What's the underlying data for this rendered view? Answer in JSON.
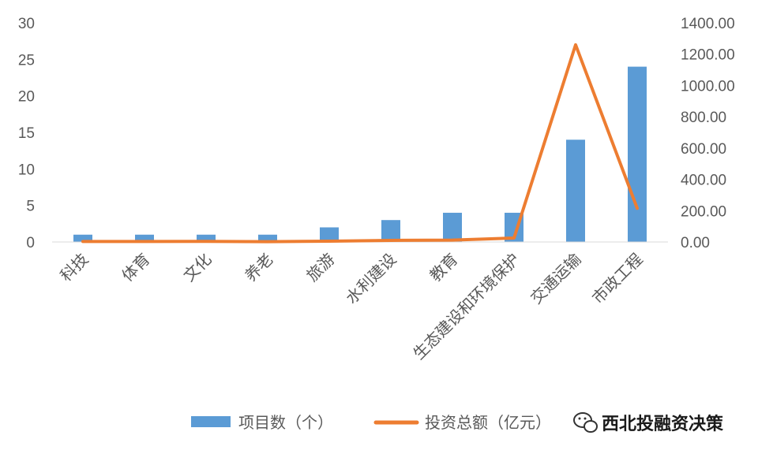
{
  "chart_data": {
    "type": "bar",
    "title": "",
    "categories": [
      "科技",
      "体育",
      "文化",
      "养老",
      "旅游",
      "水利建设",
      "教育",
      "生态建设和环境保护",
      "交通运输",
      "市政工程"
    ],
    "series": [
      {
        "name": "项目数（个）",
        "type": "bar",
        "axis": "left",
        "values": [
          1,
          1,
          1,
          1,
          2,
          3,
          4,
          4,
          14,
          24
        ]
      },
      {
        "name": "投资总额（亿元）",
        "type": "line",
        "axis": "right",
        "values": [
          3,
          3,
          4,
          2,
          5,
          10,
          12,
          25,
          1260,
          215
        ]
      }
    ],
    "y_left": {
      "min": 0,
      "max": 30,
      "ticks": [
        "0",
        "5",
        "10",
        "15",
        "20",
        "25",
        "30"
      ]
    },
    "y_right": {
      "min": 0,
      "max": 1400,
      "ticks": [
        "0.00",
        "200.00",
        "400.00",
        "600.00",
        "800.00",
        "1000.00",
        "1200.00",
        "1400.00"
      ]
    },
    "grid": false,
    "legend_position": "bottom",
    "colors": {
      "bar": "#5B9BD5",
      "line": "#ED7D31",
      "axis_text": "#595959",
      "axis_line": "#D9D9D9"
    }
  },
  "watermark": {
    "text": "西北投融资决策",
    "icon": "wechat-icon"
  }
}
